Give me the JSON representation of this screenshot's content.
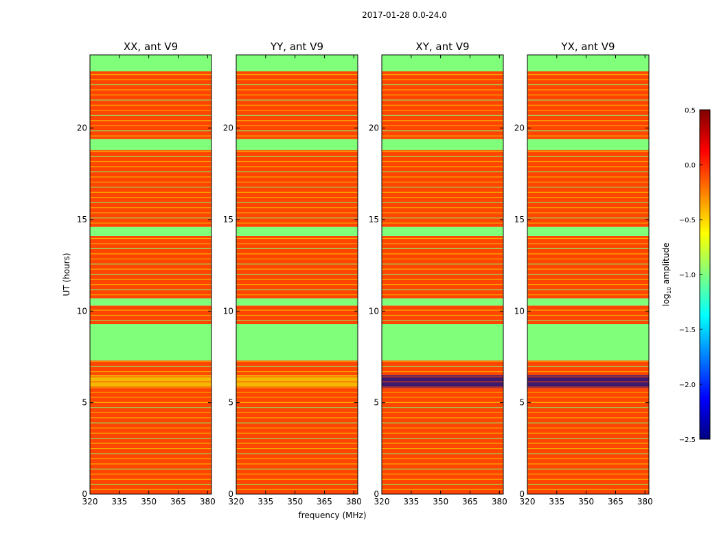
{
  "figure_title": "2017-01-28 0.0-24.0",
  "colors": {
    "low": "#80ff7a",
    "high": "#ff4500",
    "dark": "#3c1a6e",
    "stripe": "#f5b800",
    "frame": "#000000"
  },
  "chart_data": [
    {
      "type": "heatmap",
      "title": "XX, ant V9",
      "xlabel": "",
      "ylabel": "UT (hours)",
      "xlim": [
        320,
        382
      ],
      "ylim": [
        0,
        24
      ],
      "xticks": [
        320,
        335,
        350,
        365,
        380
      ],
      "yticks": [
        0,
        5,
        10,
        15,
        20
      ],
      "bands": [
        {
          "y0": 0.0,
          "y1": 5.8,
          "value": 0.0
        },
        {
          "y0": 5.8,
          "y1": 6.5,
          "value": -0.6
        },
        {
          "y0": 6.5,
          "y1": 7.3,
          "value": 0.0
        },
        {
          "y0": 7.3,
          "y1": 9.3,
          "value": -1.0
        },
        {
          "y0": 9.3,
          "y1": 10.3,
          "value": 0.0
        },
        {
          "y0": 10.3,
          "y1": 10.7,
          "value": -1.0
        },
        {
          "y0": 10.7,
          "y1": 14.1,
          "value": 0.0
        },
        {
          "y0": 14.1,
          "y1": 14.6,
          "value": -1.0
        },
        {
          "y0": 14.6,
          "y1": 18.8,
          "value": 0.0
        },
        {
          "y0": 18.8,
          "y1": 19.4,
          "value": -1.0
        },
        {
          "y0": 19.4,
          "y1": 23.1,
          "value": 0.0
        },
        {
          "y0": 23.1,
          "y1": 24.0,
          "value": -1.0
        }
      ]
    },
    {
      "type": "heatmap",
      "title": "YY, ant V9",
      "xlabel": "frequency (MHz)",
      "ylabel": "",
      "xlim": [
        320,
        382
      ],
      "ylim": [
        0,
        24
      ],
      "xticks": [
        320,
        335,
        350,
        365,
        380
      ],
      "yticks": [
        0,
        5,
        10,
        15,
        20
      ],
      "bands": [
        {
          "y0": 0.0,
          "y1": 5.8,
          "value": 0.0
        },
        {
          "y0": 5.8,
          "y1": 6.5,
          "value": -0.6
        },
        {
          "y0": 6.5,
          "y1": 7.3,
          "value": 0.0
        },
        {
          "y0": 7.3,
          "y1": 9.3,
          "value": -1.0
        },
        {
          "y0": 9.3,
          "y1": 10.3,
          "value": 0.0
        },
        {
          "y0": 10.3,
          "y1": 10.7,
          "value": -1.0
        },
        {
          "y0": 10.7,
          "y1": 14.1,
          "value": 0.0
        },
        {
          "y0": 14.1,
          "y1": 14.6,
          "value": -1.0
        },
        {
          "y0": 14.6,
          "y1": 18.8,
          "value": 0.0
        },
        {
          "y0": 18.8,
          "y1": 19.4,
          "value": -1.0
        },
        {
          "y0": 19.4,
          "y1": 23.1,
          "value": 0.0
        },
        {
          "y0": 23.1,
          "y1": 24.0,
          "value": -1.0
        }
      ]
    },
    {
      "type": "heatmap",
      "title": "XY, ant V9",
      "xlabel": "",
      "ylabel": "",
      "xlim": [
        320,
        382
      ],
      "ylim": [
        0,
        24
      ],
      "xticks": [
        320,
        335,
        350,
        365,
        380
      ],
      "yticks": [
        0,
        5,
        10,
        15,
        20
      ],
      "bands": [
        {
          "y0": 0.0,
          "y1": 5.8,
          "value": 0.0
        },
        {
          "y0": 5.8,
          "y1": 6.5,
          "value": -2.2
        },
        {
          "y0": 6.5,
          "y1": 7.3,
          "value": 0.0
        },
        {
          "y0": 7.3,
          "y1": 9.3,
          "value": -1.0
        },
        {
          "y0": 9.3,
          "y1": 10.3,
          "value": 0.0
        },
        {
          "y0": 10.3,
          "y1": 10.7,
          "value": -1.0
        },
        {
          "y0": 10.7,
          "y1": 14.1,
          "value": 0.0
        },
        {
          "y0": 14.1,
          "y1": 14.6,
          "value": -1.0
        },
        {
          "y0": 14.6,
          "y1": 18.8,
          "value": 0.0
        },
        {
          "y0": 18.8,
          "y1": 19.4,
          "value": -1.0
        },
        {
          "y0": 19.4,
          "y1": 23.1,
          "value": 0.0
        },
        {
          "y0": 23.1,
          "y1": 24.0,
          "value": -1.0
        }
      ]
    },
    {
      "type": "heatmap",
      "title": "YX, ant V9",
      "xlabel": "",
      "ylabel": "",
      "xlim": [
        320,
        382
      ],
      "ylim": [
        0,
        24
      ],
      "xticks": [
        320,
        335,
        350,
        365,
        380
      ],
      "yticks": [
        0,
        5,
        10,
        15,
        20
      ],
      "bands": [
        {
          "y0": 0.0,
          "y1": 5.8,
          "value": 0.0
        },
        {
          "y0": 5.8,
          "y1": 6.5,
          "value": -2.2
        },
        {
          "y0": 6.5,
          "y1": 7.3,
          "value": 0.0
        },
        {
          "y0": 7.3,
          "y1": 9.3,
          "value": -1.0
        },
        {
          "y0": 9.3,
          "y1": 10.3,
          "value": 0.0
        },
        {
          "y0": 10.3,
          "y1": 10.7,
          "value": -1.0
        },
        {
          "y0": 10.7,
          "y1": 14.1,
          "value": 0.0
        },
        {
          "y0": 14.1,
          "y1": 14.6,
          "value": -1.0
        },
        {
          "y0": 14.6,
          "y1": 18.8,
          "value": 0.0
        },
        {
          "y0": 18.8,
          "y1": 19.4,
          "value": -1.0
        },
        {
          "y0": 19.4,
          "y1": 23.1,
          "value": 0.0
        },
        {
          "y0": 23.1,
          "y1": 24.0,
          "value": -1.0
        }
      ]
    }
  ],
  "colorbar": {
    "label": "log10 amplitude",
    "label_base": "log",
    "label_sub": "10",
    "label_rest": " amplitude",
    "range": [
      -2.5,
      0.5
    ],
    "ticks": [
      "0.5",
      "0.0",
      "−0.5",
      "−1.0",
      "−1.5",
      "−2.0",
      "−2.5"
    ],
    "tick_values": [
      0.5,
      0.0,
      -0.5,
      -1.0,
      -1.5,
      -2.0,
      -2.5
    ],
    "stops": [
      "#00007f",
      "#0000ff",
      "#007fff",
      "#00ffff",
      "#7fff7f",
      "#ffff00",
      "#ff7f00",
      "#ff0000",
      "#7f0000"
    ]
  }
}
